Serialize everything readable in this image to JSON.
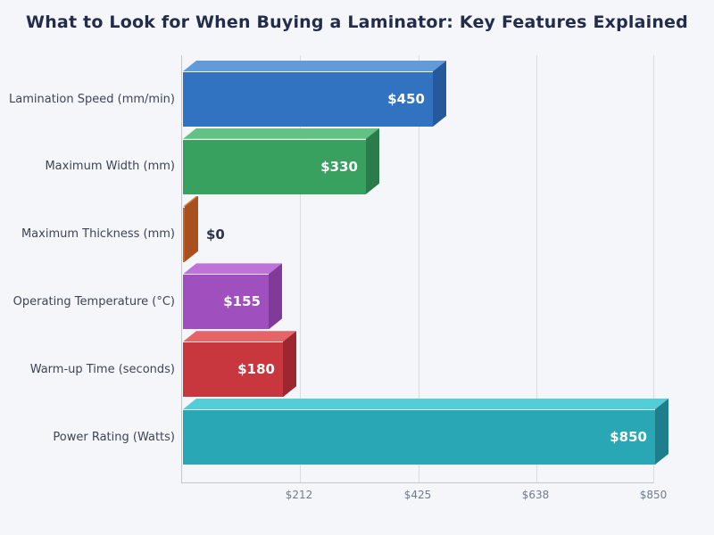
{
  "chart_data": {
    "type": "bar",
    "orientation": "horizontal",
    "style": "3d",
    "title": "What to Look for When Buying a Laminator: Key Features Explained",
    "categories": [
      "Lamination Speed (mm/min)",
      "Maximum Width (mm)",
      "Maximum Thickness (mm)",
      "Operating Temperature (°C)",
      "Warm-up Time (seconds)",
      "Power Rating (Watts)"
    ],
    "values": [
      450,
      330,
      0,
      155,
      180,
      850
    ],
    "value_labels": [
      "$450",
      "$330",
      "$0",
      "$155",
      "$180",
      "$850"
    ],
    "xlim": [
      0,
      850
    ],
    "xticks": [
      {
        "value": 212,
        "label": "$212"
      },
      {
        "value": 425,
        "label": "$425"
      },
      {
        "value": 638,
        "label": "$638"
      },
      {
        "value": 850,
        "label": "$850"
      }
    ],
    "grid": true,
    "legend": false,
    "colors": {
      "background": "#f4f6fa",
      "gridline": "#d9dde3",
      "axis_line": "#c2c7cf",
      "title_text": "#232d4b",
      "category_text": "#3d4454",
      "tick_text": "#717a8c",
      "value_text_inside": "#ffffff",
      "value_text_outside": "#2d3348",
      "bars": [
        {
          "name": "blue",
          "front": "#3273c1",
          "top": "#639bd8",
          "side": "#26599c"
        },
        {
          "name": "green",
          "front": "#38a160",
          "top": "#63c283",
          "side": "#2a7d4b"
        },
        {
          "name": "orange",
          "front": "#c86426",
          "top": "#da8443",
          "side": "#a8511f"
        },
        {
          "name": "purple",
          "front": "#a050be",
          "top": "#be73da",
          "side": "#803a98"
        },
        {
          "name": "red",
          "front": "#c8373e",
          "top": "#e46468",
          "side": "#9e2630"
        },
        {
          "name": "teal",
          "front": "#2aa7b4",
          "top": "#52ced8",
          "side": "#1f7e8c"
        }
      ]
    }
  }
}
